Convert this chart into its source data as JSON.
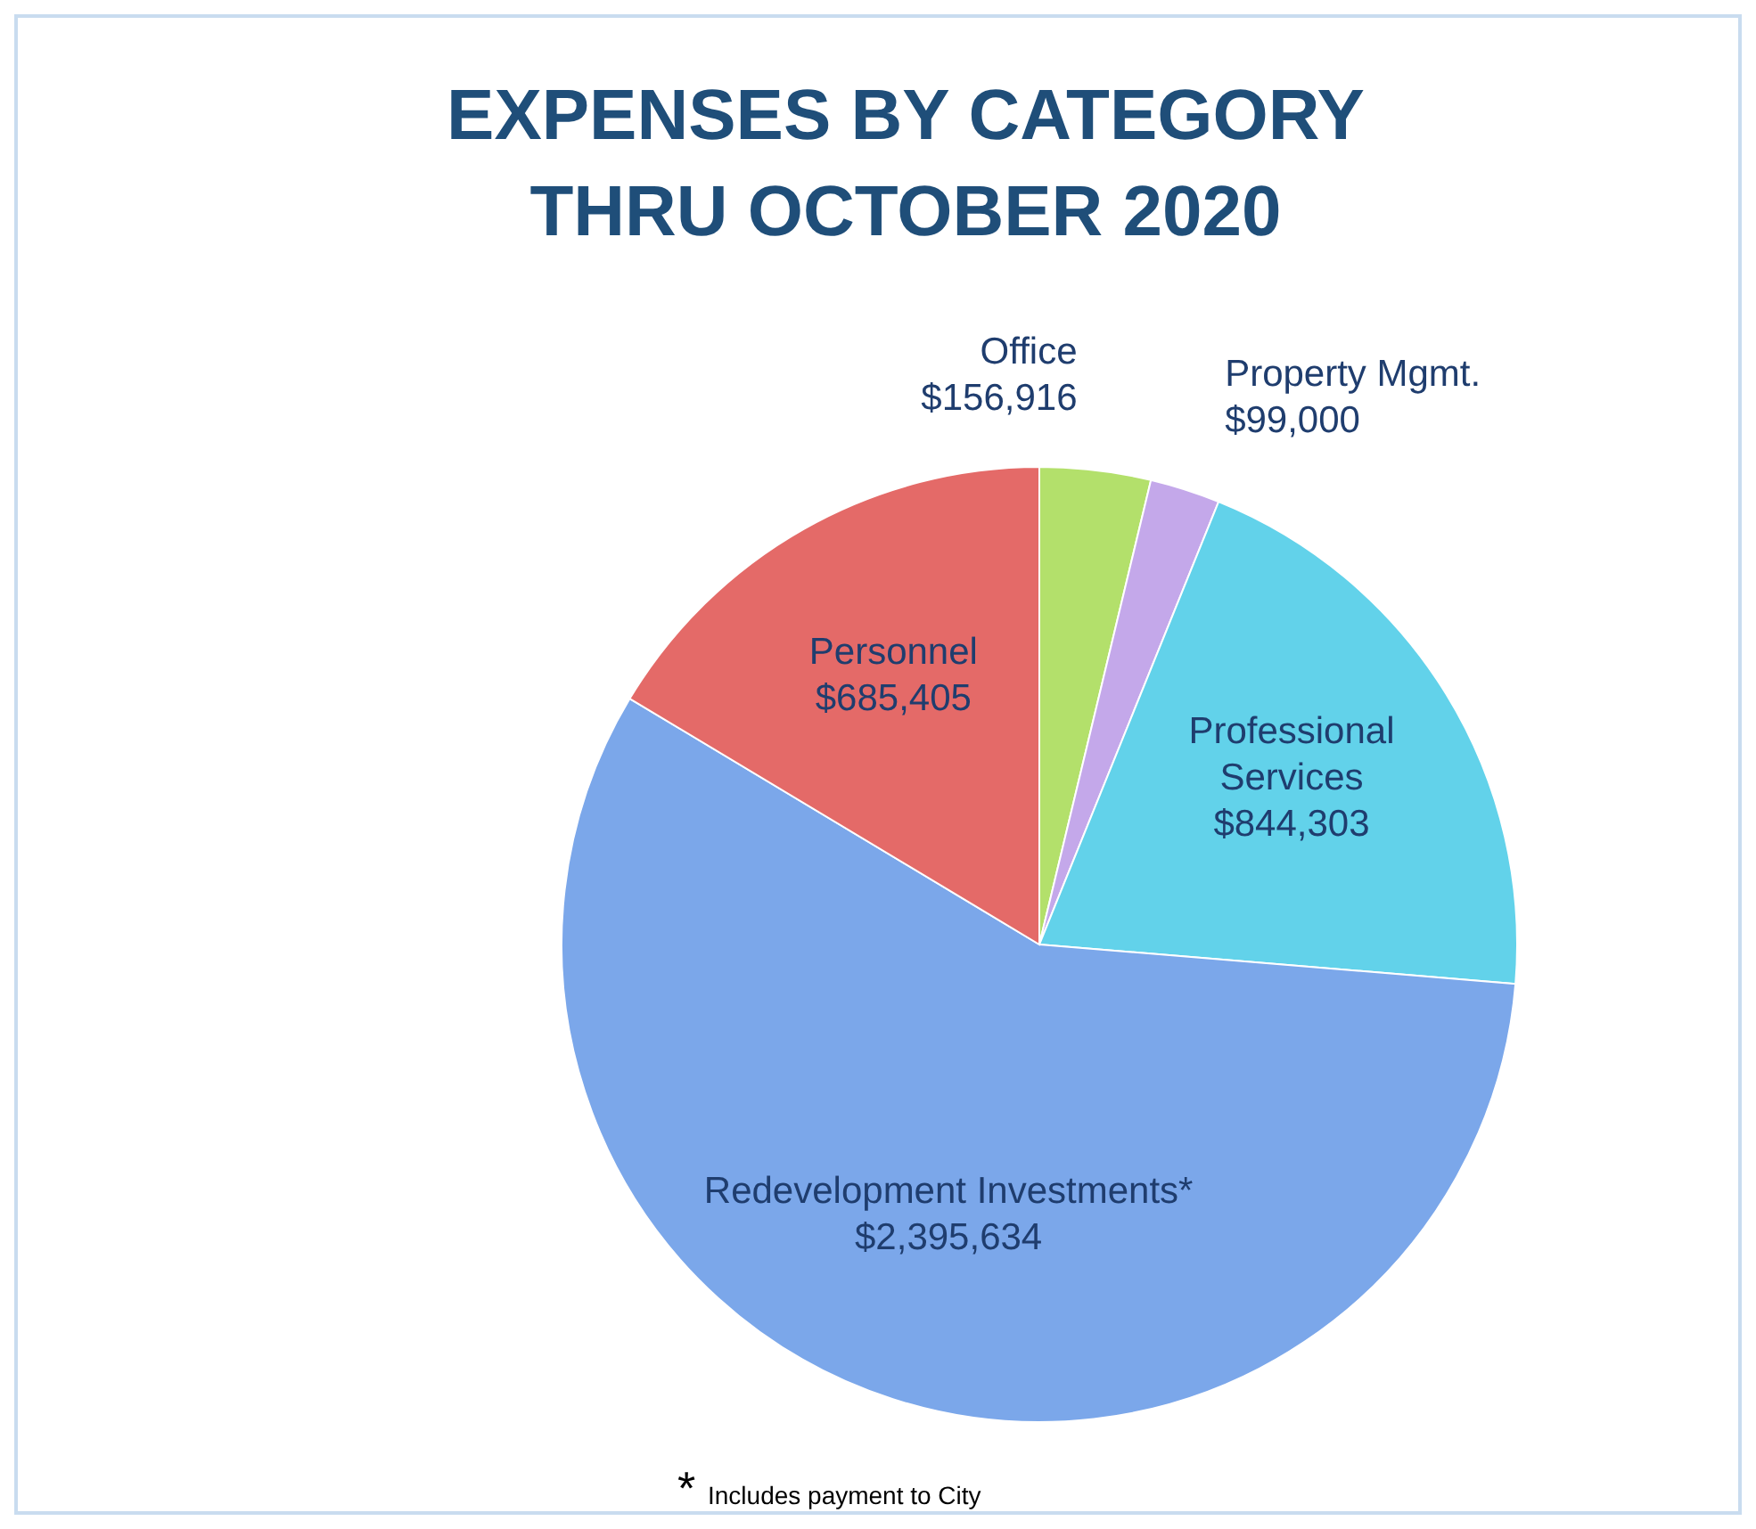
{
  "chart_data": {
    "type": "pie",
    "title": "EXPENSES BY CATEGORY\nTHRU OCTOBER 2020",
    "categories": [
      "Office",
      "Property Mgmt.",
      "Professional Services",
      "Redevelopment Investments*",
      "Personnel"
    ],
    "values": [
      156916,
      99000,
      844303,
      2395634,
      685405
    ],
    "colors": [
      "#b3e06b",
      "#c4a8ea",
      "#62d2ea",
      "#7ba7ea",
      "#e46a68"
    ],
    "value_labels": [
      "$156,916",
      "$99,000",
      "$844,303",
      "$2,395,634",
      "$685,405"
    ],
    "annotations": [
      "*",
      "Includes payment to City"
    ]
  }
}
